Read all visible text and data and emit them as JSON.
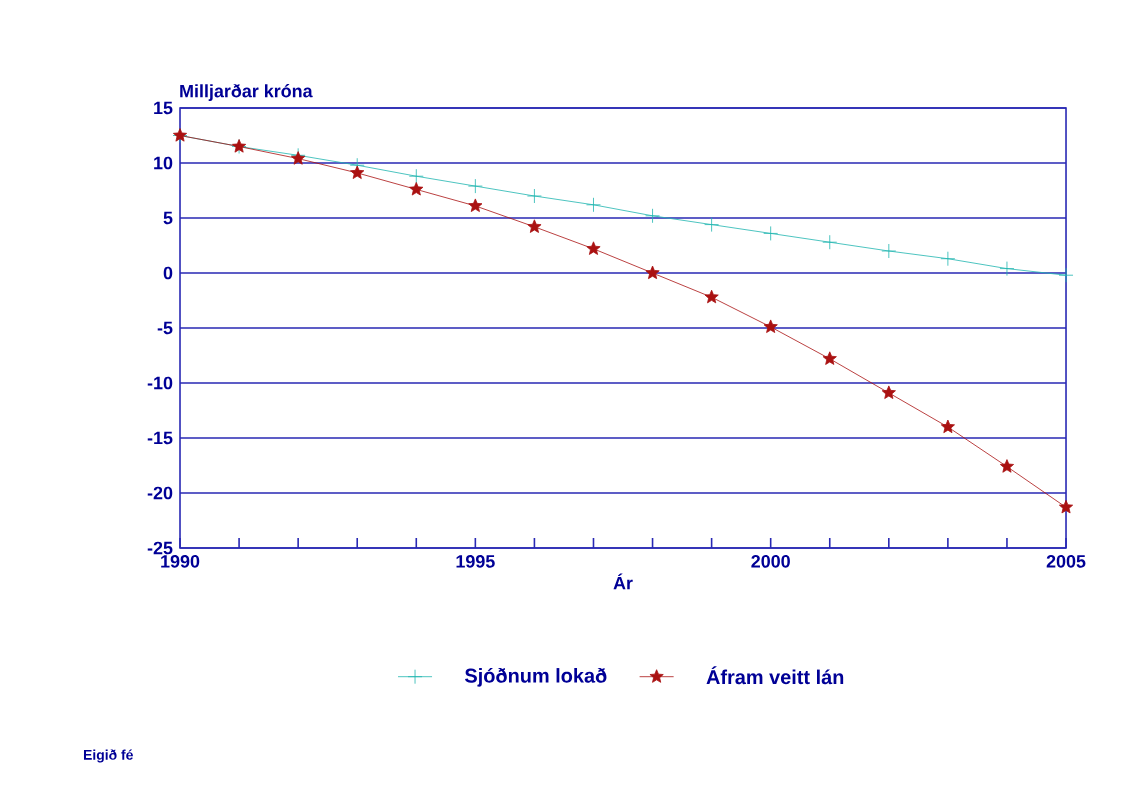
{
  "chart_data": {
    "type": "line",
    "ylabel": "Milljarðar króna",
    "xlabel": "Ár",
    "x": [
      1990,
      1991,
      1992,
      1993,
      1994,
      1995,
      1996,
      1997,
      1998,
      1999,
      2000,
      2001,
      2002,
      2003,
      2004,
      2005
    ],
    "series": [
      {
        "name": "Sjóðnum lokað",
        "color": "#1fb5b0",
        "marker": "cross",
        "values": [
          12.5,
          11.5,
          10.7,
          9.8,
          8.8,
          7.9,
          7.0,
          6.2,
          5.2,
          4.4,
          3.6,
          2.8,
          2.0,
          1.3,
          0.4,
          -0.2
        ]
      },
      {
        "name": "Áfram veitt lán",
        "color": "#aa1111",
        "marker": "star",
        "values": [
          12.5,
          11.5,
          10.4,
          9.1,
          7.6,
          6.1,
          4.2,
          2.2,
          0.0,
          -2.2,
          -4.9,
          -7.8,
          -10.9,
          -14.0,
          -17.6,
          -21.3
        ]
      }
    ],
    "xlim": [
      1990,
      2005
    ],
    "ylim": [
      -25,
      15
    ],
    "xticks": [
      1990,
      {
        "value": 1991,
        "label": null
      },
      {
        "value": 1992,
        "label": null
      },
      {
        "value": 1993,
        "label": null
      },
      {
        "value": 1994,
        "label": null
      },
      1995,
      {
        "value": 1996,
        "label": null
      },
      {
        "value": 1997,
        "label": null
      },
      {
        "value": 1998,
        "label": null
      },
      {
        "value": 1999,
        "label": null
      },
      2000,
      {
        "value": 2001,
        "label": null
      },
      {
        "value": 2002,
        "label": null
      },
      {
        "value": 2003,
        "label": null
      },
      {
        "value": 2004,
        "label": null
      },
      2005
    ],
    "yticks": [
      -25,
      -20,
      -15,
      -10,
      -5,
      0,
      5,
      10,
      15
    ],
    "grid": "y",
    "legend": "bottom",
    "line_style": "solid",
    "annotations": [
      "Eigið fé"
    ]
  }
}
